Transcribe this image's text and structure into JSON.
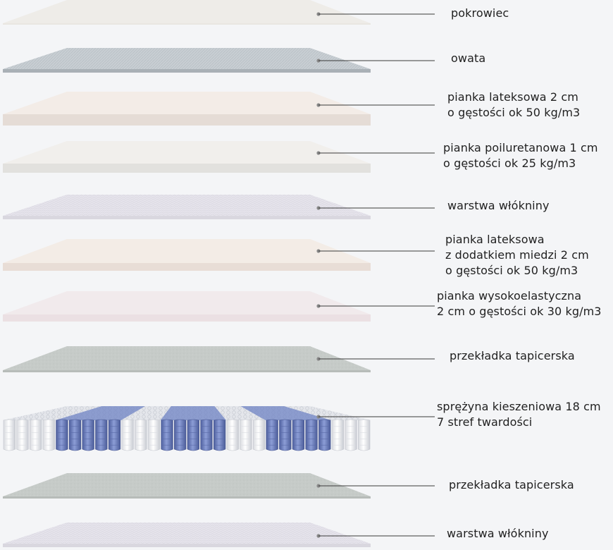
{
  "layers": [
    {
      "id": "cover",
      "lines": [
        "pokrowiec"
      ],
      "top_color": "#eeece8",
      "side_color": "#e9e6e1",
      "pattern": "none"
    },
    {
      "id": "wadding",
      "lines": [
        "owata"
      ],
      "top_color": "#c8ced3",
      "side_color": "#a9b0b6",
      "pattern": "knit"
    },
    {
      "id": "latex-2cm",
      "lines": [
        "pianka lateksowa 2 cm",
        "o gęstości ok 50 kg/m3"
      ],
      "top_color": "#f3ece7",
      "side_color": "#e5dcd6",
      "pattern": "none"
    },
    {
      "id": "pu-foam-1cm",
      "lines": [
        "pianka poiluretanowa 1 cm",
        "o gęstości ok 25 kg/m3"
      ],
      "top_color": "#f1efec",
      "side_color": "#e2e1de",
      "pattern": "none"
    },
    {
      "id": "nonwoven-1",
      "lines": [
        "warstwa włókniny"
      ],
      "top_color": "#e6e4ec",
      "side_color": "#d9d7df",
      "pattern": "fibre"
    },
    {
      "id": "copper-latex",
      "lines": [
        "pianka lateksowa",
        "z dodatkiem miedzi 2 cm",
        "o gęstości ok 50 kg/m3"
      ],
      "top_color": "#f3ece6",
      "side_color": "#e8ddd6",
      "pattern": "none"
    },
    {
      "id": "hr-foam",
      "lines": [
        "pianka wysokoelastyczna",
        "2 cm o gęstości ok 30 kg/m3"
      ],
      "top_color": "#f1eaec",
      "side_color": "#ebe0e3",
      "pattern": "none"
    },
    {
      "id": "pad-1",
      "lines": [
        "przekładka tapicerska"
      ],
      "top_color": "#c6cbc8",
      "side_color": "#b7bcb9",
      "pattern": "felt"
    },
    {
      "id": "springs",
      "lines": [
        "sprężyna kieszeniowa 18 cm",
        "7 stref twardości"
      ],
      "top_color": "#dfe1e6",
      "side_color": "#ffffff",
      "pattern": "springs"
    },
    {
      "id": "pad-2",
      "lines": [
        "przekładka tapicerska"
      ],
      "top_color": "#c6cbc8",
      "side_color": "#b7bcb9",
      "pattern": "felt"
    },
    {
      "id": "nonwoven-2",
      "lines": [
        "warstwa włókniny"
      ],
      "top_color": "#e6e4ec",
      "side_color": "#d9d7df",
      "pattern": "fibre"
    }
  ],
  "spring_zones": [
    "white",
    "blue",
    "white",
    "blue",
    "white",
    "blue",
    "white"
  ],
  "colors": {
    "leader_line": "#3a3a3a",
    "dot": "#8a8a8a",
    "spring_white": "#f6f6f8",
    "spring_blue": "#6f83c4"
  }
}
